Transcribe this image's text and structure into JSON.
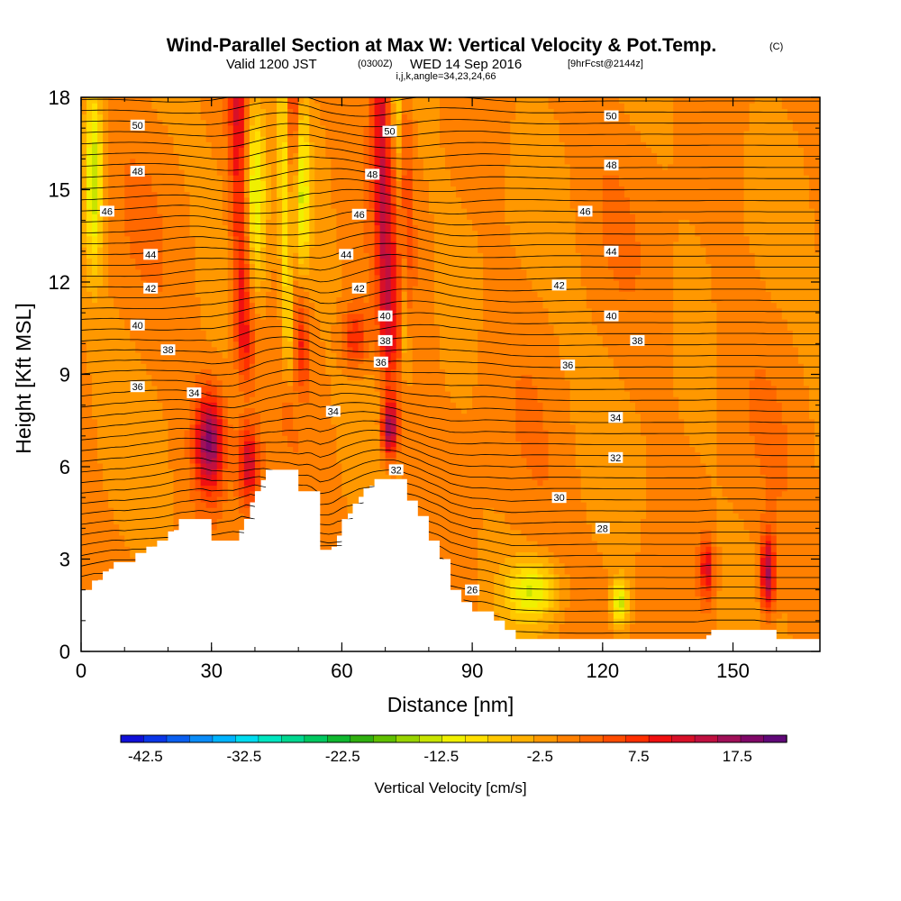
{
  "header": {
    "title": "Wind-Parallel Section at Max W: Vertical Velocity & Pot.Temp.",
    "title_mark": "(C)",
    "subtitle_main": "Valid 1200 JST",
    "subtitle_utc": "(0300Z)",
    "subtitle_date": "WED 14 Sep 2016",
    "subtitle_fcst": "[9hrFcst@2144z]",
    "subtitle_indices": "i,j,k,angle=34,23,24,66"
  },
  "chart_data": {
    "type": "heatmap",
    "title": "Wind-Parallel Section at Max W: Vertical Velocity & Pot.Temp.",
    "xlabel": "Distance [nm]",
    "ylabel": "Height [Kft MSL]",
    "xlim": [
      0,
      170
    ],
    "ylim": [
      0,
      18
    ],
    "x_ticks": [
      0,
      30,
      60,
      90,
      120,
      150
    ],
    "y_ticks": [
      0,
      3,
      6,
      9,
      12,
      15,
      18
    ],
    "colorbar": {
      "label": "Vertical Velocity [cm/s]",
      "tick_labels": [
        "-42.5",
        "-32.5",
        "-22.5",
        "-12.5",
        "-2.5",
        "7.5",
        "17.5"
      ],
      "min": -45,
      "max": 22.5,
      "step": 2.5,
      "colors": [
        "#1010d8",
        "#0a36e8",
        "#0a5ff0",
        "#0a8cf8",
        "#00b4ff",
        "#00dcf0",
        "#00e6c0",
        "#00d890",
        "#00c860",
        "#10b830",
        "#30b010",
        "#60c000",
        "#98d400",
        "#c8e400",
        "#f0f000",
        "#ffe000",
        "#ffc800",
        "#ffb000",
        "#ff9800",
        "#ff8000",
        "#ff6800",
        "#ff4c00",
        "#ff3000",
        "#f01010",
        "#d81028",
        "#c01040",
        "#a01058",
        "#800868",
        "#600878"
      ]
    },
    "terrain_profile": {
      "x": [
        0,
        2.5,
        5,
        7.5,
        10,
        12.5,
        15,
        17.5,
        20,
        22.5,
        25,
        27.5,
        30,
        32.5,
        35,
        37.5,
        40,
        42.5,
        45,
        47.5,
        50,
        52.5,
        55,
        57.5,
        60,
        62.5,
        65,
        67.5,
        70,
        72.5,
        75,
        77.5,
        80,
        82.5,
        85,
        87.5,
        90,
        92.5,
        95,
        97.5,
        100,
        105,
        110,
        115,
        120,
        125,
        130,
        135,
        140,
        145,
        150,
        155,
        160,
        165,
        170
      ],
      "height": [
        2.0,
        2.3,
        2.6,
        2.9,
        2.9,
        3.2,
        3.4,
        3.6,
        3.9,
        4.3,
        4.3,
        4.3,
        3.6,
        3.6,
        3.6,
        4.3,
        5.2,
        5.9,
        5.9,
        5.9,
        5.2,
        5.2,
        3.3,
        3.3,
        4.3,
        4.8,
        5.3,
        5.6,
        5.6,
        5.6,
        4.9,
        4.4,
        3.6,
        3.0,
        2.0,
        1.6,
        1.3,
        1.3,
        1.0,
        0.7,
        0.4,
        0.4,
        0.4,
        0.4,
        0.4,
        0.4,
        0.4,
        0.4,
        0.4,
        0.7,
        0.7,
        0.7,
        0.4,
        0.4,
        0.4
      ]
    },
    "features": [
      {
        "x": 29.5,
        "y": 6.8,
        "value": 20,
        "sx": 3.2,
        "sy": 1.6
      },
      {
        "x": 38.5,
        "y": 6.1,
        "value": 14,
        "sx": 2.3,
        "sy": 1.3
      },
      {
        "x": 71,
        "y": 7.3,
        "value": 21,
        "sx": 1.8,
        "sy": 1.0
      },
      {
        "x": 40,
        "y": 15,
        "value": -14,
        "sx": 2.5,
        "sy": 3.0
      },
      {
        "x": 50.5,
        "y": 14.5,
        "value": -22,
        "sx": 1.8,
        "sy": 3.5
      },
      {
        "x": 74,
        "y": 14,
        "value": 10,
        "sx": 2.0,
        "sy": 4.5
      },
      {
        "x": 144,
        "y": 2.7,
        "value": 13,
        "sx": 1.6,
        "sy": 1.0
      },
      {
        "x": 158,
        "y": 2.5,
        "value": 18,
        "sx": 1.7,
        "sy": 1.3
      },
      {
        "x": 124,
        "y": 1.6,
        "value": -14,
        "sx": 2.0,
        "sy": 0.8
      },
      {
        "x": 104,
        "y": 2.0,
        "value": -12,
        "sx": 6.0,
        "sy": 1.0
      },
      {
        "x": 3,
        "y": 15.5,
        "value": -15,
        "sx": 2.0,
        "sy": 3.0
      },
      {
        "x": 63,
        "y": 10.2,
        "value": 10,
        "sx": 3.0,
        "sy": 1.0
      }
    ],
    "isentrope_labels": [
      {
        "value": "26",
        "x": 90,
        "y": 2.0
      },
      {
        "value": "28",
        "x": 120,
        "y": 4.0
      },
      {
        "value": "30",
        "x": 110,
        "y": 5.0
      },
      {
        "value": "32",
        "x": 123,
        "y": 6.3
      },
      {
        "value": "32",
        "x": 72.5,
        "y": 5.9
      },
      {
        "value": "34",
        "x": 26,
        "y": 8.4
      },
      {
        "value": "34",
        "x": 58,
        "y": 7.8
      },
      {
        "value": "34",
        "x": 123,
        "y": 7.6
      },
      {
        "value": "36",
        "x": 13,
        "y": 8.6
      },
      {
        "value": "36",
        "x": 69,
        "y": 9.4
      },
      {
        "value": "36",
        "x": 112,
        "y": 9.3
      },
      {
        "value": "38",
        "x": 20,
        "y": 9.8
      },
      {
        "value": "38",
        "x": 70,
        "y": 10.1
      },
      {
        "value": "38",
        "x": 128,
        "y": 10.1
      },
      {
        "value": "40",
        "x": 13,
        "y": 10.6
      },
      {
        "value": "40",
        "x": 70,
        "y": 10.9
      },
      {
        "value": "40",
        "x": 122,
        "y": 10.9
      },
      {
        "value": "42",
        "x": 16,
        "y": 11.8
      },
      {
        "value": "42",
        "x": 64,
        "y": 11.8
      },
      {
        "value": "42",
        "x": 110,
        "y": 11.9
      },
      {
        "value": "44",
        "x": 16,
        "y": 12.9
      },
      {
        "value": "44",
        "x": 61,
        "y": 12.9
      },
      {
        "value": "44",
        "x": 122,
        "y": 13.0
      },
      {
        "value": "46",
        "x": 6,
        "y": 14.3
      },
      {
        "value": "46",
        "x": 64,
        "y": 14.2
      },
      {
        "value": "46",
        "x": 116,
        "y": 14.3
      },
      {
        "value": "48",
        "x": 13,
        "y": 15.6
      },
      {
        "value": "48",
        "x": 67,
        "y": 15.5
      },
      {
        "value": "48",
        "x": 122,
        "y": 15.8
      },
      {
        "value": "50",
        "x": 13,
        "y": 17.1
      },
      {
        "value": "50",
        "x": 71,
        "y": 16.9
      },
      {
        "value": "50",
        "x": 122,
        "y": 17.4
      }
    ]
  }
}
